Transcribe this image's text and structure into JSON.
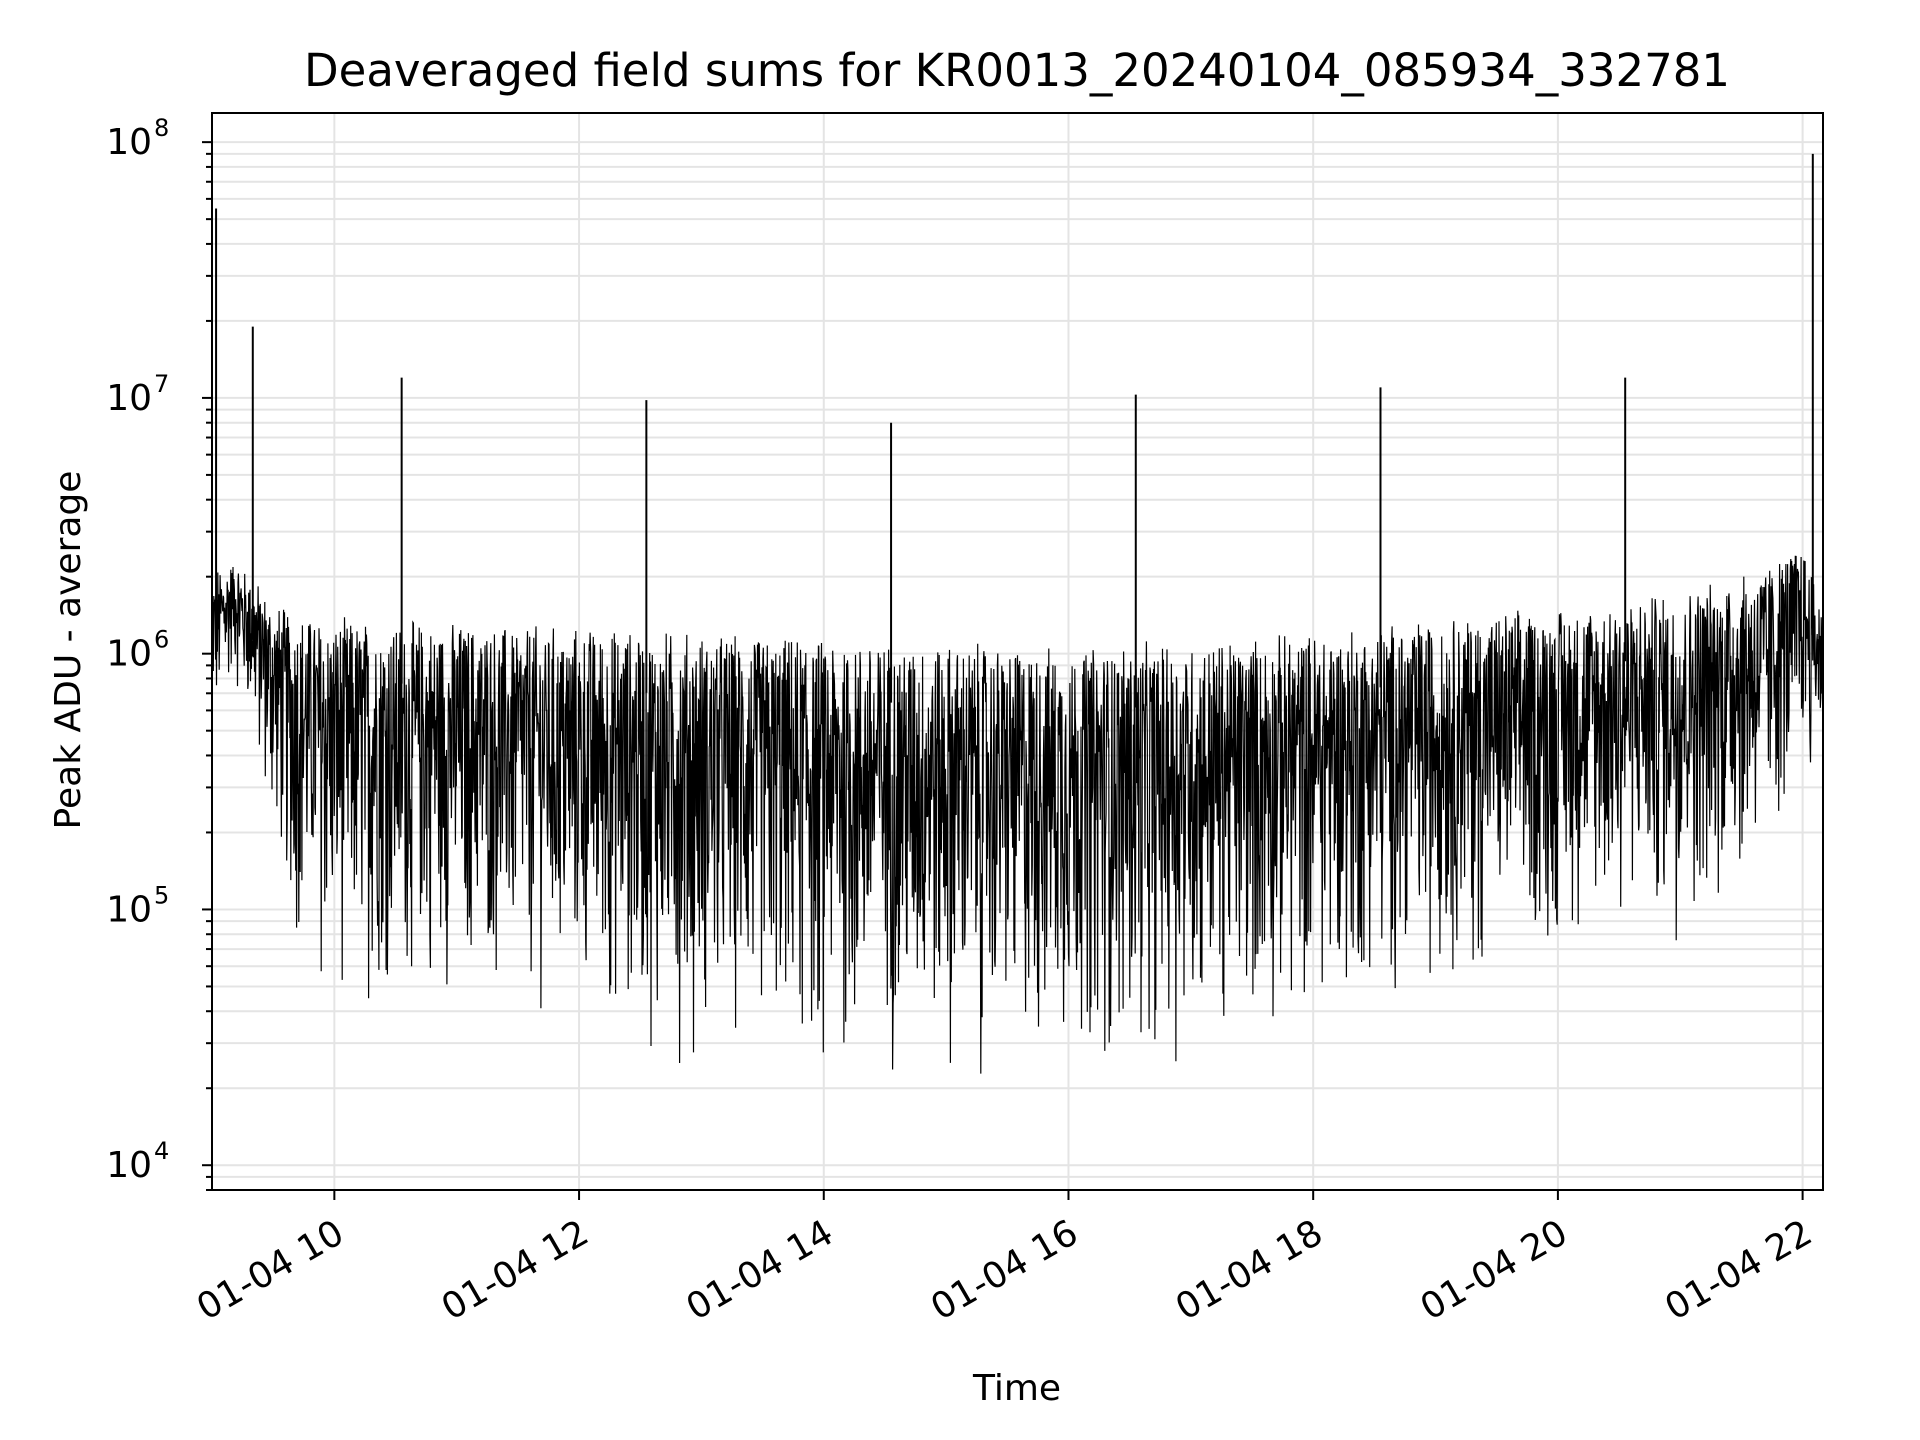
{
  "chart_data": {
    "type": "line",
    "title": "Deaveraged field sums for KR0013_20240104_085934_332781",
    "xlabel": "Time",
    "ylabel": "Peak ADU - average",
    "yscale": "log",
    "ylim": [
      8000,
      130000000
    ],
    "xlim": [
      "2024-01-04 09:00",
      "2024-01-04 22:10"
    ],
    "grid": true,
    "line_color": "#000000",
    "x_ticks": [
      {
        "t": "2024-01-04 10:00",
        "label": "01-04 10"
      },
      {
        "t": "2024-01-04 12:00",
        "label": "01-04 12"
      },
      {
        "t": "2024-01-04 14:00",
        "label": "01-04 14"
      },
      {
        "t": "2024-01-04 16:00",
        "label": "01-04 16"
      },
      {
        "t": "2024-01-04 18:00",
        "label": "01-04 18"
      },
      {
        "t": "2024-01-04 20:00",
        "label": "01-04 20"
      },
      {
        "t": "2024-01-04 22:00",
        "label": "01-04 22"
      }
    ],
    "y_ticks": [
      {
        "value": 10000,
        "base": "10",
        "exp": "4"
      },
      {
        "value": 100000,
        "base": "10",
        "exp": "5"
      },
      {
        "value": 1000000,
        "base": "10",
        "exp": "6"
      },
      {
        "value": 10000000,
        "base": "10",
        "exp": "7"
      },
      {
        "value": 100000000,
        "base": "10",
        "exp": "8"
      }
    ],
    "series": [
      {
        "envelope": {
          "x": [
            "2024-01-04 09:00",
            "2024-01-04 09:10",
            "2024-01-04 09:20",
            "2024-01-04 09:30",
            "2024-01-04 09:40",
            "2024-01-04 10:00",
            "2024-01-04 11:00",
            "2024-01-04 12:00",
            "2024-01-04 13:00",
            "2024-01-04 14:00",
            "2024-01-04 15:00",
            "2024-01-04 16:00",
            "2024-01-04 17:00",
            "2024-01-04 18:00",
            "2024-01-04 19:00",
            "2024-01-04 20:00",
            "2024-01-04 21:00",
            "2024-01-04 21:45",
            "2024-01-04 22:00",
            "2024-01-04 22:10"
          ],
          "upper": [
            2000000,
            2200000,
            1900000,
            1500000,
            1400000,
            1300000,
            1250000,
            1200000,
            1150000,
            1100000,
            1050000,
            1000000,
            1050000,
            1150000,
            1300000,
            1450000,
            1650000,
            2200000,
            2600000,
            1500000
          ],
          "lower": [
            350000,
            800000,
            400000,
            150000,
            60000,
            35000,
            40000,
            30000,
            22000,
            18000,
            18000,
            20000,
            22000,
            30000,
            45000,
            55000,
            70000,
            120000,
            300000,
            300000
          ]
        },
        "spikes": [
          {
            "t": "2024-01-04 09:02",
            "value": 55000000
          },
          {
            "t": "2024-01-04 09:20",
            "value": 19000000
          },
          {
            "t": "2024-01-04 10:33",
            "value": 12000000
          },
          {
            "t": "2024-01-04 12:33",
            "value": 9800000
          },
          {
            "t": "2024-01-04 14:33",
            "value": 8000000
          },
          {
            "t": "2024-01-04 16:33",
            "value": 10300000
          },
          {
            "t": "2024-01-04 18:33",
            "value": 11000000
          },
          {
            "t": "2024-01-04 20:33",
            "value": 12000000
          },
          {
            "t": "2024-01-04 22:05",
            "value": 90000000
          }
        ]
      }
    ]
  }
}
